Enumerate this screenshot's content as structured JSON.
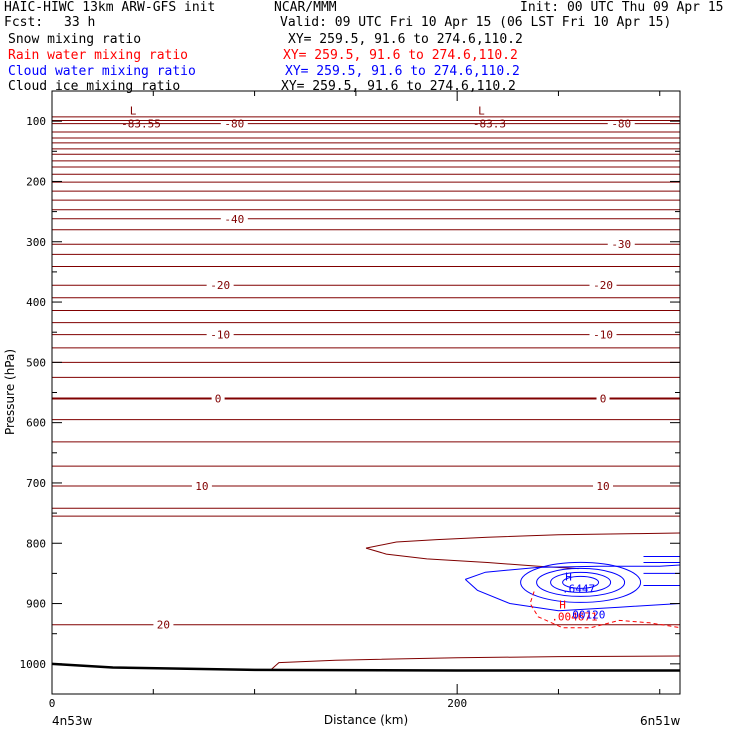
{
  "header": {
    "model": "HAIC-HIWC 13km ARW-GFS init",
    "org": "NCAR/MMM",
    "init": "Init: 00 UTC Thu 09 Apr 15",
    "fcst_label": "Fcst:",
    "fcst_value": "33 h",
    "valid": "Valid: 09 UTC Fri 10 Apr 15 (06 LST Fri 10 Apr 15)"
  },
  "fields": [
    {
      "name": "Snow mixing ratio",
      "xy": "XY= 259.5, 91.6 to 274.6,110.2",
      "color": "#000000"
    },
    {
      "name": "Rain water mixing ratio",
      "xy": "XY= 259.5, 91.6 to 274.6,110.2",
      "color": "#ff0000"
    },
    {
      "name": "Cloud water mixing ratio",
      "xy": "XY= 259.5, 91.6 to 274.6,110.2",
      "color": "#0000ff"
    },
    {
      "name": "Cloud ice mixing ratio",
      "xy": "XY= 259.5, 91.6 to 274.6,110.2",
      "color": "#000000"
    }
  ],
  "colors": {
    "temp": "#800000",
    "cloud_water": "#0000ff",
    "rain": "#ff0000",
    "ground": "#000000"
  },
  "chart_data": {
    "type": "contour",
    "xlabel": "Distance (km)",
    "ylabel": "Pressure (hPa)",
    "xlim": [
      0,
      310
    ],
    "ylim": [
      1050,
      50
    ],
    "y_scale": "linear",
    "xticks": [
      0,
      200
    ],
    "yticks": [
      100,
      200,
      300,
      400,
      500,
      600,
      700,
      800,
      900,
      1000
    ],
    "x_endpoints": [
      "4n53w",
      "6n51w"
    ],
    "temperature_isotherms": [
      {
        "label": "-80",
        "p": 104,
        "label_x": [
          90,
          281
        ]
      },
      {
        "label": "-40",
        "p": 262,
        "label_x": [
          90
        ]
      },
      {
        "label": "-30",
        "p": 304,
        "label_x": [
          281
        ]
      },
      {
        "label": "-20",
        "p": 372,
        "label_x": [
          83,
          272
        ]
      },
      {
        "label": "-10",
        "p": 454,
        "label_x": [
          83,
          272
        ]
      },
      {
        "label": "0",
        "p": 560,
        "label_x": [
          82,
          272
        ]
      },
      {
        "label": "10",
        "p": 705,
        "label_x": [
          74,
          272
        ]
      },
      {
        "label": "20",
        "p": 935,
        "label_x": [
          55
        ]
      }
    ],
    "temperature_extrema": [
      {
        "type": "L",
        "value": "-83.55",
        "x": 40,
        "p": 96
      },
      {
        "type": "L",
        "value": "-83.3",
        "x": 212,
        "p": 96
      }
    ],
    "cloud_water_max": {
      "type": "H",
      "value": ".6447",
      "x": 255,
      "p": 865
    },
    "rain_water_max": {
      "type": "H",
      "value": ".004671",
      "x": 252,
      "p": 905
    },
    "cloud_water_contour_label": "00120",
    "ground_pressure": [
      {
        "x": 0,
        "p": 1000
      },
      {
        "x": 30,
        "p": 1006
      },
      {
        "x": 100,
        "p": 1010
      },
      {
        "x": 200,
        "p": 1011
      },
      {
        "x": 310,
        "p": 1011
      }
    ]
  }
}
